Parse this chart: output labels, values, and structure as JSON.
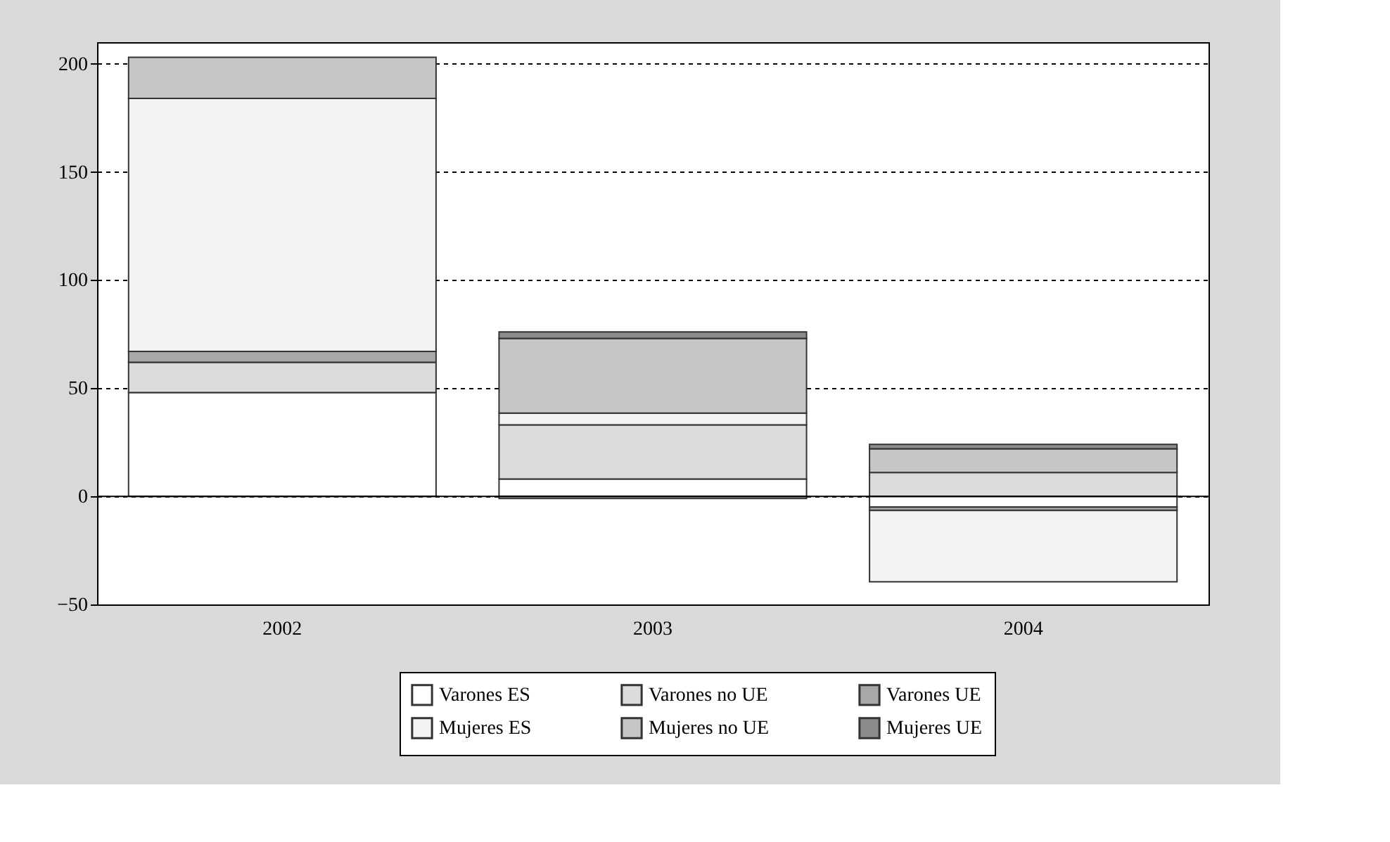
{
  "chart_data": {
    "type": "bar",
    "stacked": true,
    "categories": [
      "2002",
      "2003",
      "2004"
    ],
    "series": [
      {
        "name": "Varones ES",
        "color": "#ffffff",
        "values": [
          48,
          8,
          -5
        ]
      },
      {
        "name": "Varones no UE",
        "color": "#dcdcdc",
        "values": [
          14,
          25,
          11
        ]
      },
      {
        "name": "Varones UE",
        "color": "#a8a8a8",
        "values": [
          5,
          -1,
          -1.5
        ]
      },
      {
        "name": "Mujeres ES",
        "color": "#f2f2f2",
        "values": [
          117,
          5.5,
          -33
        ]
      },
      {
        "name": "Mujeres no UE",
        "color": "#c6c6c6",
        "values": [
          19,
          34.5,
          11
        ]
      },
      {
        "name": "Mujeres UE",
        "color": "#8c8c8c",
        "values": [
          null,
          3,
          2
        ]
      }
    ],
    "ylim": [
      -50,
      210
    ],
    "yticks": [
      -50,
      0,
      50,
      100,
      150,
      200
    ],
    "grid": "y",
    "legend": "bottom",
    "ref_lines": [
      {
        "axis": "y",
        "value": 0,
        "color": "#000000",
        "line_style": "solid"
      }
    ]
  }
}
